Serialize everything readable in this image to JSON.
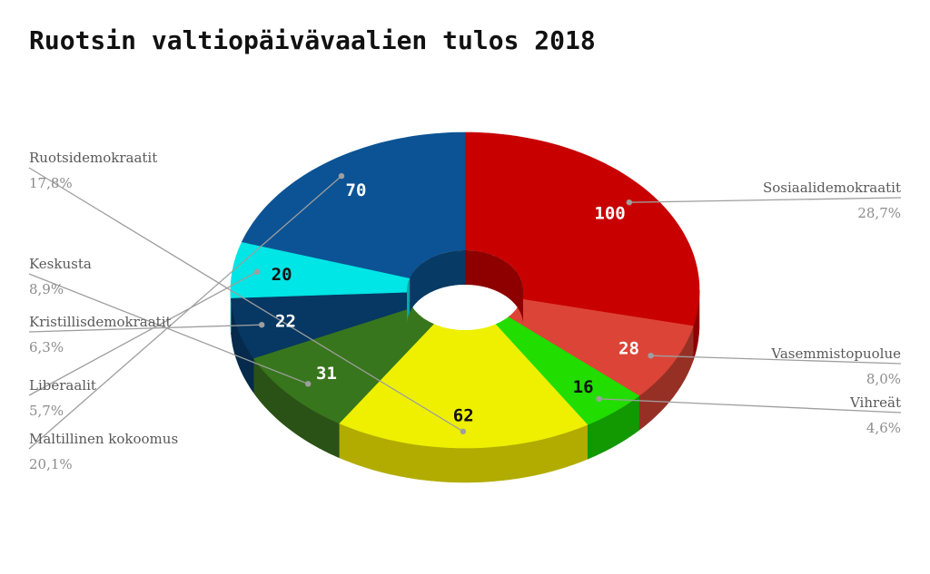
{
  "chart_data": {
    "type": "pie",
    "title": "Ruotsin valtiopäivävaalien tulos 2018",
    "style": "3d-doughnut",
    "slices": [
      {
        "label": "Sosiaalidemokraatit",
        "value": 100,
        "value_label": "100",
        "percent_label": "28,7%",
        "color": "#c80000",
        "side_color": "#8e0000",
        "value_color": "#ffffff"
      },
      {
        "label": "Vasemmistopuolue",
        "value": 28,
        "value_label": "28",
        "percent_label": "8,0%",
        "color": "#dc4438",
        "side_color": "#963025",
        "value_color": "#ffffff"
      },
      {
        "label": "Vihreät",
        "value": 16,
        "value_label": "16",
        "percent_label": "4,6%",
        "color": "#22dd00",
        "side_color": "#129800",
        "value_color": "#111111"
      },
      {
        "label": "Ruotsidemokraatit",
        "value": 62,
        "value_label": "62",
        "percent_label": "17,8%",
        "color": "#eef000",
        "side_color": "#b2ac00",
        "value_color": "#111111"
      },
      {
        "label": "Keskusta",
        "value": 31,
        "value_label": "31",
        "percent_label": "8,9%",
        "color": "#38761d",
        "side_color": "#2a5216",
        "value_color": "#ffffff"
      },
      {
        "label": "Kristillisdemokraatit",
        "value": 22,
        "value_label": "22",
        "percent_label": "6,3%",
        "color": "#073763",
        "side_color": "#052a4b",
        "value_color": "#ffffff"
      },
      {
        "label": "Liberaalit",
        "value": 20,
        "value_label": "20",
        "percent_label": "5,7%",
        "color": "#00e5e5",
        "side_color": "#00aaaa",
        "value_color": "#111111"
      },
      {
        "label": "Maltillinen kokoomus",
        "value": 70,
        "value_label": "70",
        "percent_label": "20,1%",
        "color": "#0b5394",
        "side_color": "#083a66",
        "value_color": "#ffffff"
      }
    ]
  }
}
